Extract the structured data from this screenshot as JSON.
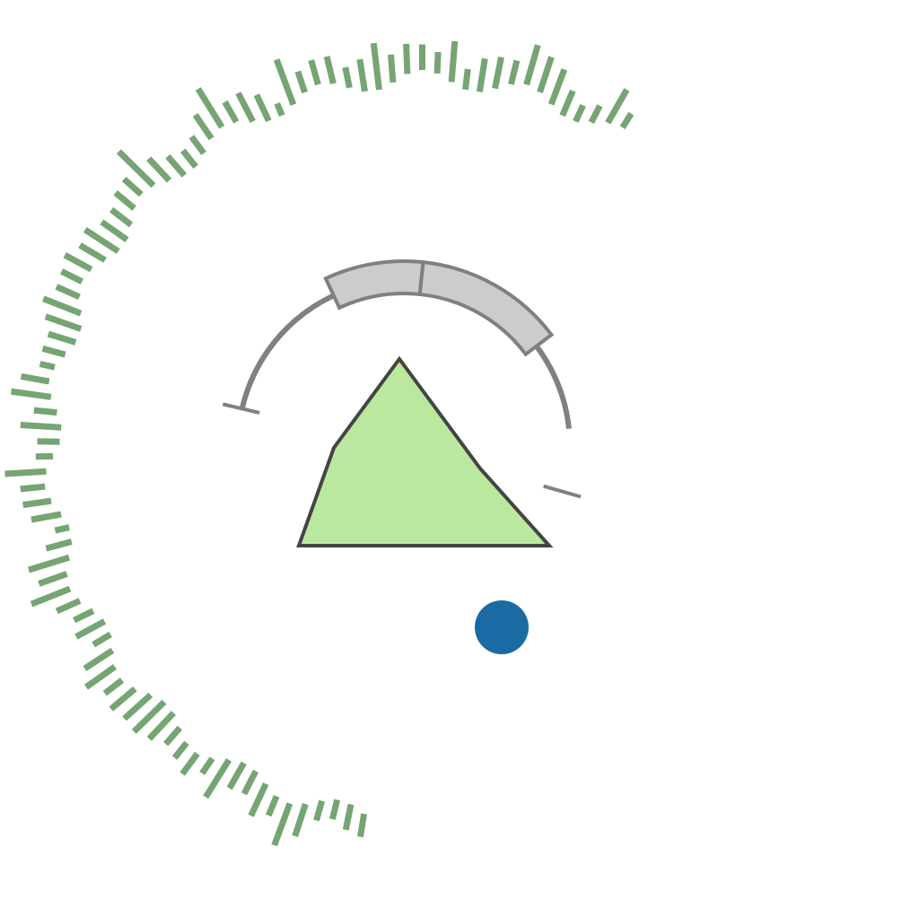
{
  "game": {
    "colors": {
      "background": "#ffffff",
      "outer_bars": "#76a574",
      "ship_fill": "#bbe89f",
      "ship_stroke": "#444444",
      "shield_stroke": "#808080",
      "shield_fill": "#cccccc",
      "projectile": "#1a6ba3"
    },
    "entities": {
      "player_ship": {
        "kind": "triangle",
        "icon": "player-ship-icon"
      },
      "shield_arc": {
        "kind": "arc",
        "icon": "shield-arc-icon",
        "segments": 2
      },
      "projectile": {
        "kind": "circle",
        "icon": "projectile-icon"
      },
      "outer_ring": {
        "kind": "radial-bars",
        "icon": "spectrum-ring-icon"
      }
    }
  }
}
